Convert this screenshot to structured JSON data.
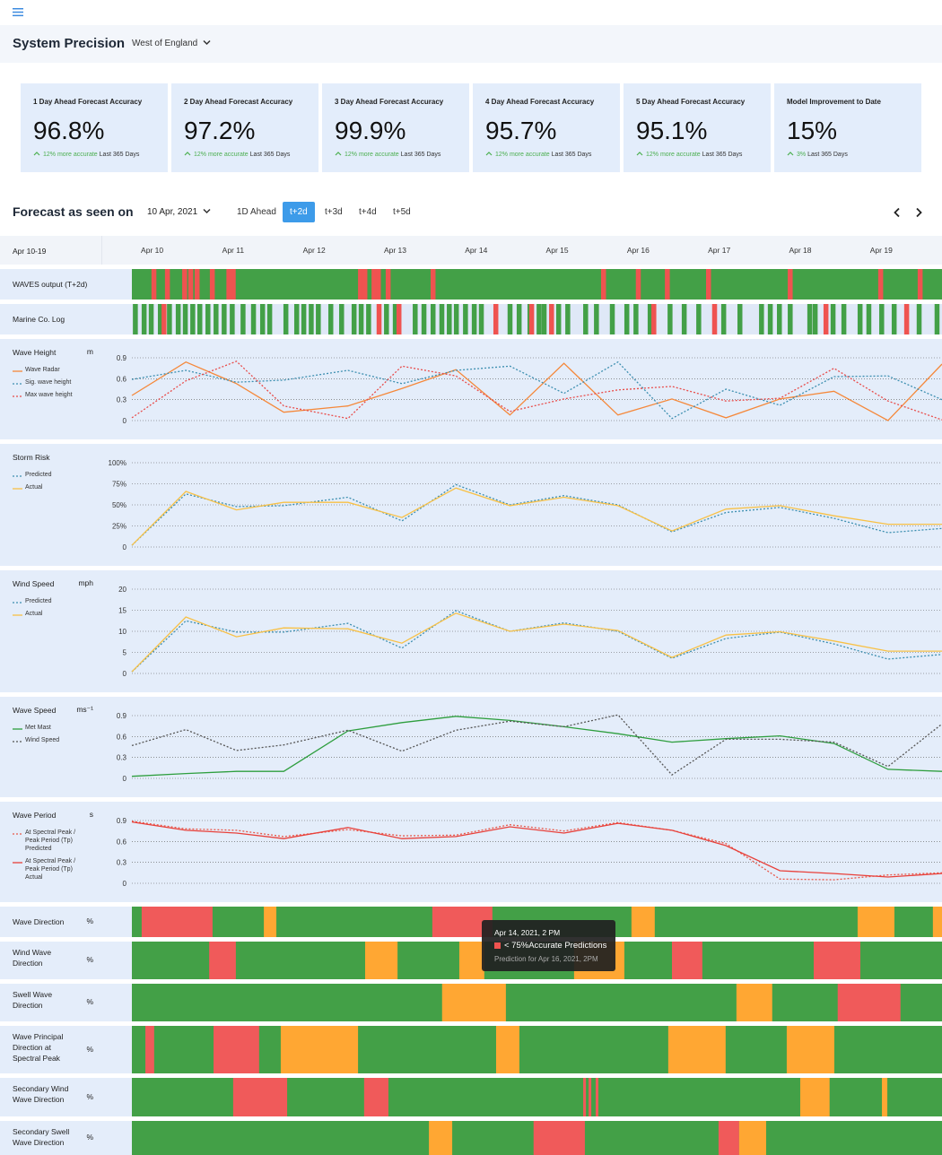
{
  "header": {
    "title": "System Precision",
    "region": "West of England"
  },
  "cards": [
    {
      "title": "1 Day Ahead Forecast Accuracy",
      "value": "96.8%",
      "change": "12% more accurate",
      "period": "Last 365 Days"
    },
    {
      "title": "2 Day Ahead Forecast Accuracy",
      "value": "97.2%",
      "change": "12% more accurate",
      "period": "Last 365 Days"
    },
    {
      "title": "3 Day Ahead Forecast Accuracy",
      "value": "99.9%",
      "change": "12% more accurate",
      "period": "Last 365 Days"
    },
    {
      "title": "4 Day Ahead Forecast Accuracy",
      "value": "95.7%",
      "change": "12% more accurate",
      "period": "Last 365 Days"
    },
    {
      "title": "5 Day Ahead Forecast Accuracy",
      "value": "95.1%",
      "change": "12% more accurate",
      "period": "Last 365 Days"
    },
    {
      "title": "Model Improvement to Date",
      "value": "15%",
      "change": "3%",
      "period": "Last 365 Days"
    }
  ],
  "forecast": {
    "title": "Forecast as seen on",
    "date": "10 Apr, 2021",
    "tabs": [
      "1D Ahead",
      "t+2d",
      "t+3d",
      "t+4d",
      "t+5d"
    ],
    "active_tab": 1
  },
  "timeline": {
    "range_label": "Apr 10-19",
    "xlim": [
      0,
      240
    ],
    "xticks": [
      {
        "value": 6,
        "label": "Apr 10"
      },
      {
        "value": 30,
        "label": "Apr 11"
      },
      {
        "value": 54,
        "label": "Apr 12"
      },
      {
        "value": 78,
        "label": "Apr 13"
      },
      {
        "value": 102,
        "label": "Apr 14"
      },
      {
        "value": 126,
        "label": "Apr 15"
      },
      {
        "value": 150,
        "label": "Apr 16"
      },
      {
        "value": 174,
        "label": "Apr 17"
      },
      {
        "value": 198,
        "label": "Apr 18"
      },
      {
        "value": 222,
        "label": "Apr 19"
      }
    ]
  },
  "strips": [
    {
      "label": "WAVES output (T+2d)",
      "color": "#43a047",
      "series": [
        {
          "color": "#ef5350",
          "x": [
            5.8,
            9.8,
            14.9,
            16.7,
            18.6,
            23.1,
            28,
            29.3,
            67,
            68.3,
            71,
            72.3,
            75.2,
            88.5,
            139,
            149.3,
            157.9,
            170.1,
            194.3,
            221.1,
            232.8
          ]
        }
      ]
    },
    {
      "label": "Marine Co. Log",
      "color": "#dfe8f7",
      "series": [
        {
          "color": "#43a047",
          "x": [
            0.3,
            2.9,
            5,
            7.7,
            10.4,
            13,
            15.1,
            17.3,
            19.4,
            21.8,
            24.2,
            26.6,
            29,
            32.2,
            35.3,
            38,
            40.1,
            44.9,
            48.1,
            50.2,
            52.4,
            54.5,
            58.2,
            61.4,
            65.1,
            67.2,
            69.4,
            74.7,
            77.3,
            83.2,
            85.8,
            88.5,
            91.1,
            93.3,
            95.4,
            98.1,
            100.7,
            102.8,
            111.3,
            114,
            117.2,
            119.9,
            121.4,
            125.7,
            128.4,
            133.7,
            136.9,
            141.6,
            145.9,
            148.6,
            152.8,
            158.7,
            162.9,
            167.2,
            174.6,
            179.4,
            185.8,
            188.4,
            191.1,
            194.3,
            200.1,
            201.7,
            207,
            210.2,
            215,
            217.6,
            221.4,
            225.1,
            232.5,
            237.8
          ]
        },
        {
          "color": "#ef5350",
          "x": [
            8.8,
            72.5,
            78.4,
            107.1,
            117.7,
            123.6,
            153.9,
            171.9,
            204.9,
            228.8
          ]
        }
      ]
    }
  ],
  "chart_data": [
    {
      "type": "line",
      "title": "Wave Height",
      "unit": "m",
      "xlim": [
        0,
        240
      ],
      "ylim": [
        0,
        0.9
      ],
      "yticks": [
        0,
        0.3,
        0.6,
        0.9
      ],
      "grid": true,
      "x": [
        0,
        16,
        31,
        45,
        64,
        80,
        96,
        112,
        128,
        144,
        160,
        176,
        192,
        208,
        224,
        240
      ],
      "series": [
        {
          "name": "Wave Radar",
          "color": "#f5883a",
          "dashed": false,
          "values": [
            0.36,
            0.84,
            0.53,
            0.12,
            0.21,
            0.46,
            0.73,
            0.08,
            0.82,
            0.08,
            0.31,
            0.04,
            0.31,
            0.42,
            0,
            0.81
          ]
        },
        {
          "name": "Sig. wave height",
          "color": "#3d8fb0",
          "dashed": true,
          "values": [
            0.59,
            0.72,
            0.55,
            0.58,
            0.72,
            0.53,
            0.72,
            0.78,
            0.39,
            0.84,
            0.03,
            0.45,
            0.22,
            0.63,
            0.64,
            0.3
          ]
        },
        {
          "name": "Max wave height",
          "color": "#e84c4a",
          "dashed": true,
          "values": [
            0.04,
            0.57,
            0.85,
            0.21,
            0.03,
            0.78,
            0.64,
            0.13,
            0.31,
            0.44,
            0.49,
            0.28,
            0.32,
            0.75,
            0.28,
            0.01
          ]
        }
      ]
    },
    {
      "type": "line",
      "title": "Storm Risk",
      "xlim": [
        0,
        240
      ],
      "ylim": [
        0,
        100
      ],
      "yticks": [
        0,
        {
          "value": 25,
          "label": "25%"
        },
        {
          "value": 50,
          "label": "50%"
        },
        {
          "value": 75,
          "label": "75%"
        },
        {
          "value": 100,
          "label": "100%"
        }
      ],
      "grid": true,
      "x": [
        0,
        16,
        31,
        45,
        64,
        80,
        96,
        112,
        128,
        144,
        160,
        176,
        192,
        208,
        224,
        240
      ],
      "series": [
        {
          "name": "Predicted",
          "color": "#3d8fb0",
          "dashed": true,
          "values": [
            2,
            63,
            48,
            49,
            59,
            31,
            74,
            50,
            61,
            50,
            18,
            41,
            47,
            34,
            17,
            22
          ]
        },
        {
          "name": "Actual",
          "color": "#f8c146",
          "dashed": false,
          "values": [
            2,
            66,
            44,
            53,
            53,
            35,
            70,
            49,
            59,
            49,
            19,
            45,
            49,
            37,
            27,
            27
          ]
        }
      ]
    },
    {
      "type": "line",
      "title": "Wind Speed",
      "unit": "mph",
      "xlim": [
        0,
        240
      ],
      "ylim": [
        0,
        20
      ],
      "yticks": [
        0,
        5,
        10,
        15,
        20
      ],
      "grid": true,
      "x": [
        0,
        16,
        31,
        45,
        64,
        80,
        96,
        112,
        128,
        144,
        160,
        176,
        192,
        208,
        224,
        240
      ],
      "series": [
        {
          "name": "Predicted",
          "color": "#3d8fb0",
          "dashed": true,
          "values": [
            0.4,
            12.5,
            9.8,
            9.8,
            11.9,
            6,
            14.9,
            10,
            12,
            10,
            3.6,
            8.3,
            9.8,
            7,
            3.4,
            4.5
          ]
        },
        {
          "name": "Actual",
          "color": "#f8c146",
          "dashed": false,
          "values": [
            0.4,
            13.4,
            8.7,
            10.8,
            10.6,
            7.2,
            14.3,
            10,
            11.7,
            10.2,
            3.8,
            9.1,
            9.9,
            7.7,
            5.3,
            5.3
          ]
        }
      ]
    },
    {
      "type": "line",
      "title": "Wave Speed",
      "unit": "ms⁻¹",
      "xlim": [
        0,
        240
      ],
      "ylim": [
        0,
        0.9
      ],
      "yticks": [
        0,
        0.3,
        0.6,
        0.9
      ],
      "grid": true,
      "x": [
        0,
        16,
        31,
        45,
        64,
        80,
        96,
        112,
        128,
        144,
        160,
        176,
        192,
        208,
        224,
        240
      ],
      "series": [
        {
          "name": "Met Mast",
          "color": "#2e9e3e",
          "dashed": false,
          "values": [
            0.03,
            0.07,
            0.1,
            0.1,
            0.68,
            0.8,
            0.89,
            0.83,
            0.74,
            0.64,
            0.52,
            0.57,
            0.61,
            0.5,
            0.13,
            0.1
          ]
        },
        {
          "name": "Wind Speed",
          "color": "#555555",
          "dashed": true,
          "values": [
            0.47,
            0.7,
            0.4,
            0.48,
            0.69,
            0.39,
            0.69,
            0.82,
            0.74,
            0.91,
            0.05,
            0.56,
            0.56,
            0.52,
            0.17,
            0.78
          ]
        }
      ]
    },
    {
      "type": "line",
      "title": "Wave Period",
      "unit": "s",
      "xlim": [
        0,
        240
      ],
      "ylim": [
        0,
        0.9
      ],
      "yticks": [
        0,
        0.3,
        0.6,
        0.9
      ],
      "grid": true,
      "x": [
        0,
        16,
        31,
        45,
        64,
        80,
        96,
        112,
        128,
        144,
        160,
        176,
        192,
        208,
        224,
        240
      ],
      "series": [
        {
          "name": "At Spectral Peak / Peak Period  (Tp) Predicted",
          "color": "#e8584a",
          "dashed": true,
          "values": [
            0.89,
            0.78,
            0.76,
            0.67,
            0.77,
            0.68,
            0.69,
            0.84,
            0.75,
            0.87,
            0.76,
            0.57,
            0.06,
            0.05,
            0.12,
            0.15
          ]
        },
        {
          "name": "At Spectral Peak / Peak Period  (Tp) Actual",
          "color": "#e8403a",
          "dashed": false,
          "values": [
            0.88,
            0.76,
            0.72,
            0.64,
            0.8,
            0.64,
            0.67,
            0.81,
            0.72,
            0.86,
            0.76,
            0.54,
            0.18,
            0.14,
            0.09,
            0.14
          ]
        }
      ]
    }
  ],
  "direction_rows": [
    {
      "label": "Wave Direction",
      "unit": "%",
      "color": "#43a047",
      "segments": [
        {
          "from": 2.9,
          "to": 23.9,
          "color": "#f05a5a"
        },
        {
          "from": 39.1,
          "to": 42.8,
          "color": "#ffa733"
        },
        {
          "from": 89,
          "to": 106.8,
          "color": "#f05a5a"
        },
        {
          "from": 148,
          "to": 154.9,
          "color": "#ffa733"
        },
        {
          "from": 215,
          "to": 225.9,
          "color": "#ffa733"
        },
        {
          "from": 237.3,
          "to": 240,
          "color": "#ffa733"
        }
      ]
    },
    {
      "label": "Wind Wave Direction",
      "unit": "%",
      "color": "#43a047",
      "segments": [
        {
          "from": 22.9,
          "to": 30.8,
          "color": "#f05a5a"
        },
        {
          "from": 69.1,
          "to": 78.7,
          "color": "#ffa733"
        },
        {
          "from": 97,
          "to": 104.4,
          "color": "#ffa733"
        },
        {
          "from": 131,
          "to": 145.9,
          "color": "#ffa733"
        },
        {
          "from": 160,
          "to": 169,
          "color": "#f05a5a"
        },
        {
          "from": 202,
          "to": 215.8,
          "color": "#f05a5a"
        }
      ]
    },
    {
      "label": "Swell Wave Direction",
      "unit": "%",
      "color": "#43a047",
      "segments": [
        {
          "from": 91.9,
          "to": 110.8,
          "color": "#ffa733"
        },
        {
          "from": 179.1,
          "to": 189.7,
          "color": "#ffa733"
        },
        {
          "from": 209.1,
          "to": 227.7,
          "color": "#f05a5a"
        }
      ]
    },
    {
      "label": "Wave Principal Direction at Spectral Peak",
      "unit": "%",
      "color": "#43a047",
      "segments": [
        {
          "from": 4,
          "to": 6.6,
          "color": "#f05a5a"
        },
        {
          "from": 24.2,
          "to": 37.7,
          "color": "#f05a5a"
        },
        {
          "from": 44.1,
          "to": 67,
          "color": "#ffa733"
        },
        {
          "from": 107.9,
          "to": 114.8,
          "color": "#ffa733"
        },
        {
          "from": 158.9,
          "to": 175.9,
          "color": "#ffa733"
        },
        {
          "from": 194,
          "to": 208.1,
          "color": "#ffa733"
        }
      ]
    },
    {
      "label": "Secondary Wind Wave Direction",
      "unit": "%",
      "color": "#43a047",
      "segments": [
        {
          "from": 30,
          "to": 46,
          "color": "#f05a5a"
        },
        {
          "from": 68.8,
          "to": 76,
          "color": "#f05a5a"
        },
        {
          "from": 133.7,
          "to": 134.5,
          "color": "#f05a5a"
        },
        {
          "from": 135.3,
          "to": 136.1,
          "color": "#f05a5a"
        },
        {
          "from": 137.4,
          "to": 138.2,
          "color": "#f05a5a"
        },
        {
          "from": 198,
          "to": 206.7,
          "color": "#ffa733"
        },
        {
          "from": 222.2,
          "to": 223.8,
          "color": "#ffa733"
        }
      ]
    },
    {
      "label": "Secondary Swell Wave Direction",
      "unit": "%",
      "color": "#43a047",
      "segments": [
        {
          "from": 88,
          "to": 94.9,
          "color": "#ffa733"
        },
        {
          "from": 119,
          "to": 134.2,
          "color": "#f05a5a"
        },
        {
          "from": 173.8,
          "to": 179.9,
          "color": "#f05a5a"
        },
        {
          "from": 179.9,
          "to": 187.9,
          "color": "#ffa733"
        }
      ]
    }
  ],
  "tooltip": {
    "title": "Apr 14, 2021, 2 PM",
    "status": "< 75%Accurate Predictions",
    "color": "#ef5350",
    "detail": "Prediction for Apr 16, 2021, 2PM"
  }
}
